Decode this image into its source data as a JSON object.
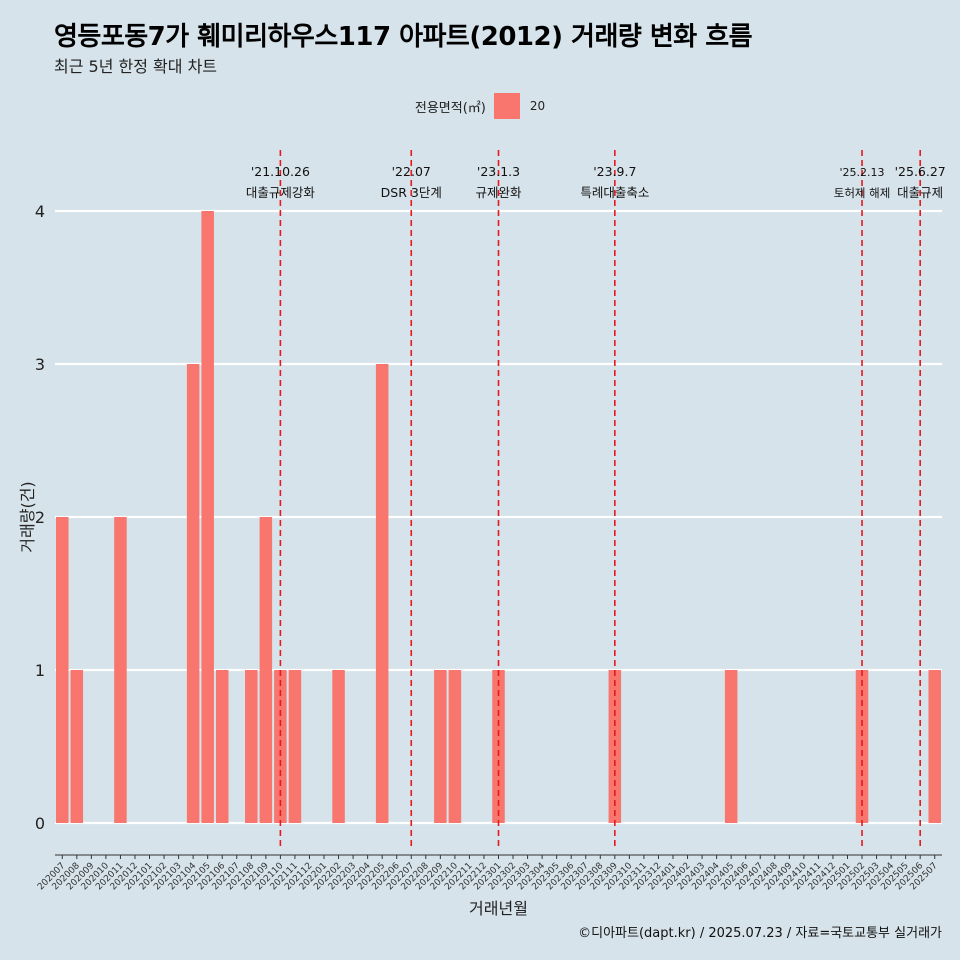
{
  "title": "영등포동7가 훼미리하우스117 아파트(2012) 거래량 변화 흐름",
  "subtitle": "최근 5년 한정 확대 차트",
  "legend": {
    "title": "전용면적(㎡)",
    "items": [
      {
        "label": "20",
        "color": "#f8766d"
      }
    ]
  },
  "caption": "©디아파트(dapt.kr) / 2025.07.23 / 자료=국토교통부 실거래가",
  "chart_data": {
    "type": "bar",
    "xlabel": "거래년월",
    "ylabel": "거래량(건)",
    "ylim": [
      0,
      4
    ],
    "yticks": [
      0,
      1,
      2,
      3,
      4
    ],
    "grid": true,
    "legend_position": "top",
    "categories": [
      "202007",
      "202008",
      "202009",
      "202010",
      "202011",
      "202012",
      "202101",
      "202102",
      "202103",
      "202104",
      "202105",
      "202106",
      "202107",
      "202108",
      "202109",
      "202110",
      "202111",
      "202112",
      "202201",
      "202202",
      "202203",
      "202204",
      "202205",
      "202206",
      "202207",
      "202208",
      "202209",
      "202210",
      "202211",
      "202212",
      "202301",
      "202302",
      "202303",
      "202304",
      "202305",
      "202306",
      "202307",
      "202308",
      "202309",
      "202310",
      "202311",
      "202312",
      "202401",
      "202402",
      "202403",
      "202404",
      "202405",
      "202406",
      "202407",
      "202408",
      "202409",
      "202410",
      "202411",
      "202412",
      "202501",
      "202502",
      "202503",
      "202504",
      "202505",
      "202506",
      "202507"
    ],
    "series": [
      {
        "name": "20",
        "color": "#f8766d",
        "values": [
          2,
          1,
          0,
          0,
          2,
          0,
          0,
          0,
          0,
          3,
          4,
          1,
          0,
          1,
          2,
          1,
          1,
          0,
          0,
          1,
          0,
          0,
          3,
          0,
          0,
          0,
          1,
          1,
          0,
          0,
          1,
          0,
          0,
          0,
          0,
          0,
          0,
          0,
          1,
          0,
          0,
          0,
          0,
          0,
          0,
          0,
          1,
          0,
          0,
          0,
          0,
          0,
          0,
          0,
          0,
          1,
          0,
          0,
          0,
          0,
          1
        ]
      }
    ],
    "events": [
      {
        "x": "202110",
        "date": "'21.10.26",
        "label": "대출규제강화"
      },
      {
        "x": "202207",
        "date": "'22.07",
        "label": "DSR 3단계"
      },
      {
        "x": "202301",
        "date": "'23.1.3",
        "label": "규제완화"
      },
      {
        "x": "202309",
        "date": "'23.9.7",
        "label": "특례대출축소"
      },
      {
        "x": "202502",
        "date": "'25.2.13",
        "label": "토허제 해제"
      },
      {
        "x": "202506",
        "date": "'25.6.27",
        "label": "대출규제"
      }
    ]
  }
}
